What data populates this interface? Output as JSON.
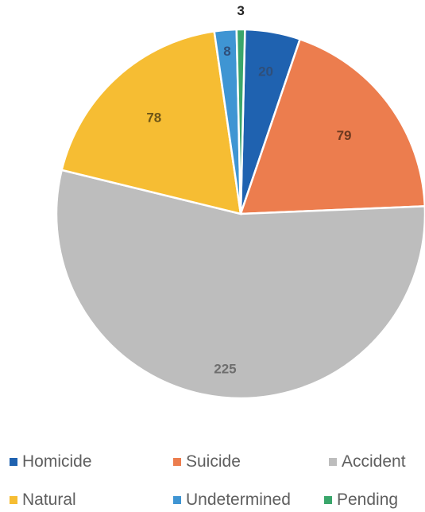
{
  "chart_data": {
    "type": "pie",
    "categories": [
      "Homicide",
      "Suicide",
      "Accident",
      "Natural",
      "Undetermined",
      "Pending"
    ],
    "values": [
      20,
      79,
      225,
      78,
      8,
      3
    ],
    "value_labels": [
      "20",
      "79",
      "225",
      "78",
      "8",
      "3"
    ],
    "colors": [
      "#1f62b0",
      "#ec7d4e",
      "#bdbdbd",
      "#f6bd33",
      "#3f95d3",
      "#3aa66b"
    ],
    "label_colors": [
      "#2f4f7a",
      "#6e3a20",
      "#6e6e6e",
      "#6e5517",
      "#2f4f7a",
      "#222222"
    ],
    "legend_position": "bottom"
  }
}
